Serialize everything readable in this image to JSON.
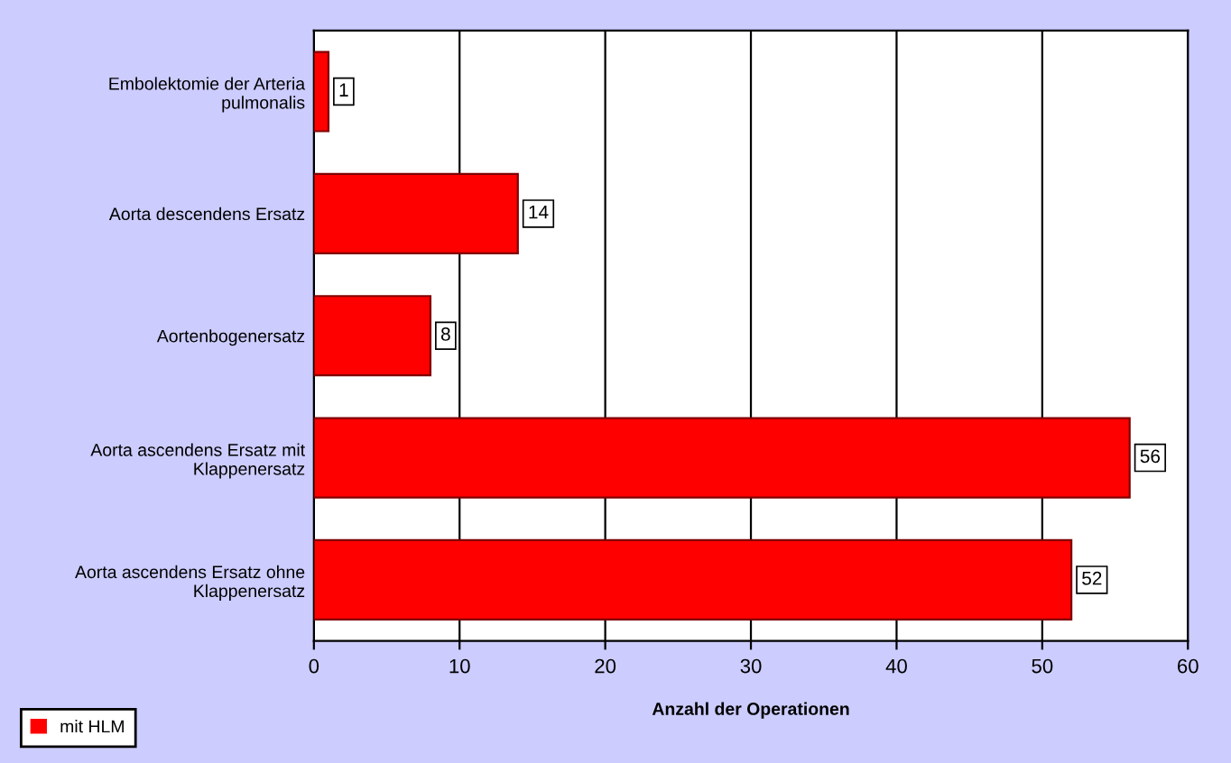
{
  "chart_data": {
    "type": "bar",
    "orientation": "horizontal",
    "xlabel": "Anzahl der Operationen",
    "categories": [
      "Embolektomie der Arteria\npulmonalis",
      "Aorta descendens Ersatz",
      "Aortenbogenersatz",
      "Aorta ascendens Ersatz mit\nKlappenersatz",
      "Aorta ascendens Ersatz ohne\nKlappenersatz"
    ],
    "series": [
      {
        "name": "mit HLM",
        "color": "#ff0000",
        "values": [
          1,
          14,
          8,
          56,
          52
        ]
      }
    ],
    "xlim": [
      0,
      60
    ],
    "xticks": [
      0,
      10,
      20,
      30,
      40,
      50,
      60
    ],
    "grid": "x",
    "legend": "bottom left",
    "data_labels": true
  }
}
